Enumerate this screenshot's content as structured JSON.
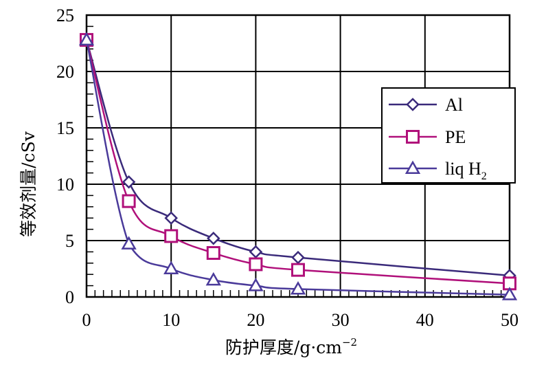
{
  "chart_data": {
    "type": "line",
    "xlabel": "防护厚度/g·cm",
    "xlabel_sup": "−2",
    "ylabel": "等效剂量/cSv",
    "xlim": [
      0,
      50
    ],
    "ylim": [
      0,
      25
    ],
    "xticks": [
      "0",
      "10",
      "20",
      "30",
      "40",
      "50"
    ],
    "yticks": [
      "0",
      "5",
      "10",
      "15",
      "20",
      "25"
    ],
    "grid": true,
    "legend_position": "right",
    "series": [
      {
        "name": "Al",
        "name_sub": "",
        "marker": "diamond",
        "color": "#3a2a7a",
        "x": [
          0,
          5,
          10,
          15,
          20,
          25,
          50
        ],
        "y": [
          22.8,
          10.2,
          7.0,
          5.2,
          4.0,
          3.5,
          1.9
        ]
      },
      {
        "name": "PE",
        "name_sub": "",
        "marker": "square",
        "color": "#b0107a",
        "x": [
          0,
          5,
          10,
          15,
          20,
          25,
          50
        ],
        "y": [
          22.8,
          8.5,
          5.4,
          3.9,
          2.9,
          2.4,
          1.2
        ]
      },
      {
        "name": "liq H",
        "name_sub": "2",
        "marker": "triangle",
        "color": "#4a3a9a",
        "x": [
          0,
          5,
          10,
          15,
          20,
          25,
          50
        ],
        "y": [
          22.8,
          4.7,
          2.5,
          1.5,
          1.0,
          0.7,
          0.2
        ]
      }
    ]
  }
}
